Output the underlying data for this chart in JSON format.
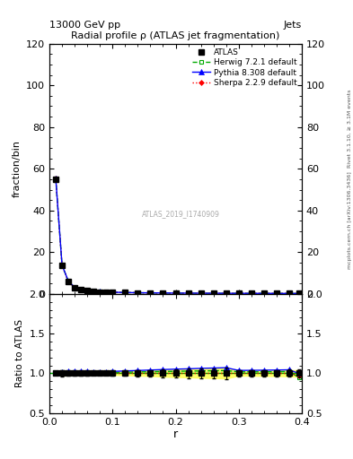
{
  "title": "Radial profile ρ (ATLAS jet fragmentation)",
  "top_left_label": "13000 GeV pp",
  "top_right_label": "Jets",
  "right_label_upper": "Rivet 3.1.10, ≥ 3.1M events",
  "right_label_lower": "mcplots.cern.ch [arXiv:1306.3436]",
  "watermark": "ATLAS_2019_I1740909",
  "ylabel_upper": "fraction/bin",
  "ylabel_lower": "Ratio to ATLAS",
  "xlabel": "r",
  "xlim": [
    0,
    0.4
  ],
  "ylim_upper": [
    0,
    120
  ],
  "ylim_lower": [
    0.5,
    2.0
  ],
  "yticks_upper": [
    0,
    20,
    40,
    60,
    80,
    100,
    120
  ],
  "yticks_lower": [
    0.5,
    1.0,
    1.5,
    2.0
  ],
  "xticks": [
    0.0,
    0.1,
    0.2,
    0.3,
    0.4
  ],
  "r_values": [
    0.01,
    0.02,
    0.03,
    0.04,
    0.05,
    0.06,
    0.07,
    0.08,
    0.09,
    0.1,
    0.12,
    0.14,
    0.16,
    0.18,
    0.2,
    0.22,
    0.24,
    0.26,
    0.28,
    0.3,
    0.32,
    0.34,
    0.36,
    0.38,
    0.395
  ],
  "atlas_data": [
    55.0,
    13.5,
    6.0,
    3.0,
    2.0,
    1.5,
    1.2,
    1.0,
    0.9,
    0.8,
    0.65,
    0.55,
    0.48,
    0.42,
    0.38,
    0.35,
    0.32,
    0.3,
    0.28,
    0.27,
    0.26,
    0.25,
    0.24,
    0.22,
    0.2
  ],
  "herwig_data": [
    55.2,
    13.7,
    6.1,
    3.05,
    2.02,
    1.52,
    1.21,
    1.01,
    0.91,
    0.81,
    0.66,
    0.56,
    0.49,
    0.43,
    0.39,
    0.36,
    0.33,
    0.31,
    0.29,
    0.275,
    0.265,
    0.255,
    0.245,
    0.225,
    0.19
  ],
  "pythia_data": [
    55.5,
    13.8,
    6.15,
    3.1,
    2.05,
    1.55,
    1.22,
    1.02,
    0.92,
    0.82,
    0.67,
    0.57,
    0.5,
    0.44,
    0.4,
    0.37,
    0.34,
    0.32,
    0.3,
    0.28,
    0.27,
    0.26,
    0.25,
    0.23,
    0.2
  ],
  "sherpa_data": [
    55.3,
    13.6,
    6.05,
    3.02,
    2.01,
    1.51,
    1.2,
    1.0,
    0.9,
    0.8,
    0.65,
    0.55,
    0.48,
    0.42,
    0.38,
    0.35,
    0.32,
    0.3,
    0.28,
    0.27,
    0.26,
    0.25,
    0.24,
    0.22,
    0.195
  ],
  "atlas_color": "#000000",
  "herwig_color": "#00aa00",
  "pythia_color": "#0000ff",
  "sherpa_color": "#ff0000",
  "herwig_ratio": [
    1.004,
    1.015,
    1.017,
    1.017,
    1.01,
    1.013,
    1.008,
    1.01,
    1.011,
    1.013,
    1.015,
    1.018,
    1.021,
    1.024,
    1.026,
    1.029,
    1.031,
    1.033,
    1.036,
    1.019,
    1.019,
    1.02,
    1.021,
    1.023,
    0.95
  ],
  "pythia_ratio": [
    1.009,
    1.022,
    1.025,
    1.033,
    1.025,
    1.033,
    1.017,
    1.02,
    1.022,
    1.025,
    1.031,
    1.036,
    1.042,
    1.048,
    1.053,
    1.057,
    1.063,
    1.067,
    1.071,
    1.037,
    1.038,
    1.04,
    1.042,
    1.045,
    1.0
  ],
  "sherpa_ratio": [
    1.005,
    1.007,
    1.008,
    1.007,
    1.005,
    1.007,
    1.0,
    1.0,
    1.0,
    1.0,
    1.0,
    1.0,
    1.0,
    1.0,
    1.0,
    1.0,
    1.0,
    1.0,
    1.0,
    1.0,
    1.0,
    1.0,
    1.0,
    1.0,
    0.975
  ],
  "atlas_ratio_err_upper": [
    1.018,
    1.037,
    1.033,
    1.033,
    1.025,
    1.033,
    1.017,
    1.02,
    1.022,
    1.025,
    1.031,
    1.036,
    1.042,
    1.048,
    1.053,
    1.057,
    1.063,
    1.067,
    1.071,
    1.037,
    1.038,
    1.04,
    1.042,
    1.045,
    1.05
  ],
  "atlas_ratio_err_lower": [
    0.982,
    0.963,
    0.967,
    0.967,
    0.975,
    0.967,
    0.983,
    0.98,
    0.978,
    0.975,
    0.969,
    0.964,
    0.958,
    0.952,
    0.947,
    0.943,
    0.937,
    0.933,
    0.929,
    0.963,
    0.962,
    0.96,
    0.958,
    0.955,
    0.95
  ],
  "herwig_band_upper": [
    1.01,
    1.02,
    1.02,
    1.02,
    1.012,
    1.015,
    1.01,
    1.012,
    1.013,
    1.015,
    1.017,
    1.02,
    1.023,
    1.026,
    1.028,
    1.031,
    1.033,
    1.035,
    1.038,
    1.022,
    1.022,
    1.023,
    1.024,
    1.026,
    0.958
  ],
  "herwig_band_lower": [
    0.998,
    1.01,
    1.014,
    1.014,
    1.008,
    1.011,
    1.006,
    1.008,
    1.009,
    1.011,
    1.013,
    1.016,
    1.019,
    1.022,
    1.024,
    1.027,
    1.029,
    1.031,
    1.034,
    1.016,
    1.016,
    1.017,
    1.018,
    1.02,
    0.942
  ]
}
